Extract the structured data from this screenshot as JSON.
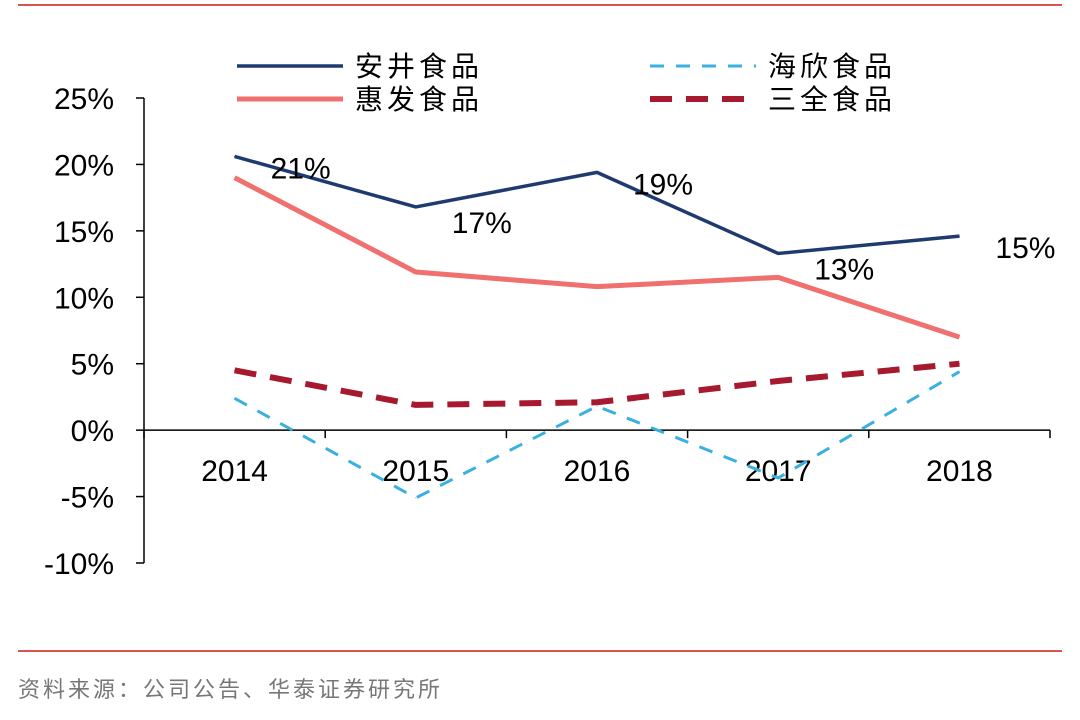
{
  "chart_data": {
    "type": "line",
    "categories": [
      "2014",
      "2015",
      "2016",
      "2017",
      "2018"
    ],
    "ylim": [
      -10,
      25
    ],
    "yticks": [
      25,
      20,
      15,
      10,
      5,
      0,
      -5,
      -10
    ],
    "ytick_labels": [
      "25%",
      "20%",
      "15%",
      "10%",
      "5%",
      "0%",
      "-5%",
      "-10%"
    ],
    "legend_position": "top",
    "series": [
      {
        "name": "安井食品",
        "values": [
          20.6,
          16.8,
          19.4,
          13.3,
          14.6
        ],
        "color": "#1f3a6e",
        "style": "solid",
        "data_labels": [
          "21%",
          "17%",
          "19%",
          "13%",
          "15%"
        ]
      },
      {
        "name": "海欣食品",
        "values": [
          2.4,
          -5.1,
          1.8,
          -3.6,
          4.4
        ],
        "color": "#3ab0e2",
        "style": "dashed"
      },
      {
        "name": "惠发食品",
        "values": [
          19.0,
          11.9,
          10.8,
          11.5,
          7.0
        ],
        "color": "#f07070",
        "style": "solid"
      },
      {
        "name": "三全食品",
        "values": [
          4.5,
          1.9,
          2.1,
          3.7,
          5.0
        ],
        "color": "#a6192e",
        "style": "dashed"
      }
    ]
  },
  "source_text": "资料来源：公司公告、华泰证券研究所",
  "colors": {
    "divider": "#d9534f",
    "axis": "#000000"
  }
}
